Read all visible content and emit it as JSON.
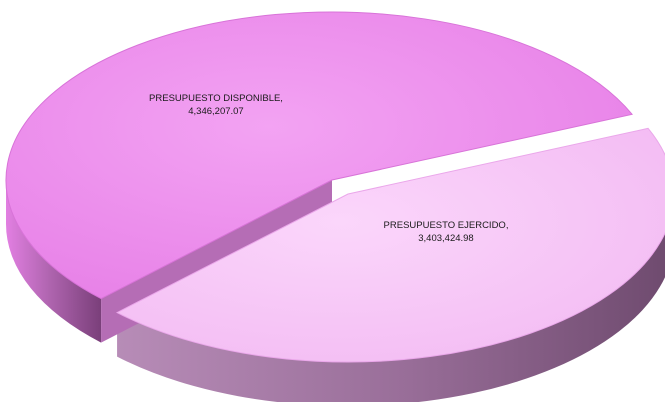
{
  "chart_data": {
    "type": "pie",
    "style": "3d",
    "series": [
      {
        "label": "PRESUPUESTO DISPONIBLE,",
        "value": 4346207.07,
        "value_text": "4,346,207.07",
        "color": "#ee88ee"
      },
      {
        "label": "PRESUPUESTO EJERCIDO,",
        "value": 3403424.98,
        "value_text": "3,403,424.98",
        "color": "#f9c6f9"
      }
    ],
    "legend": "none"
  }
}
